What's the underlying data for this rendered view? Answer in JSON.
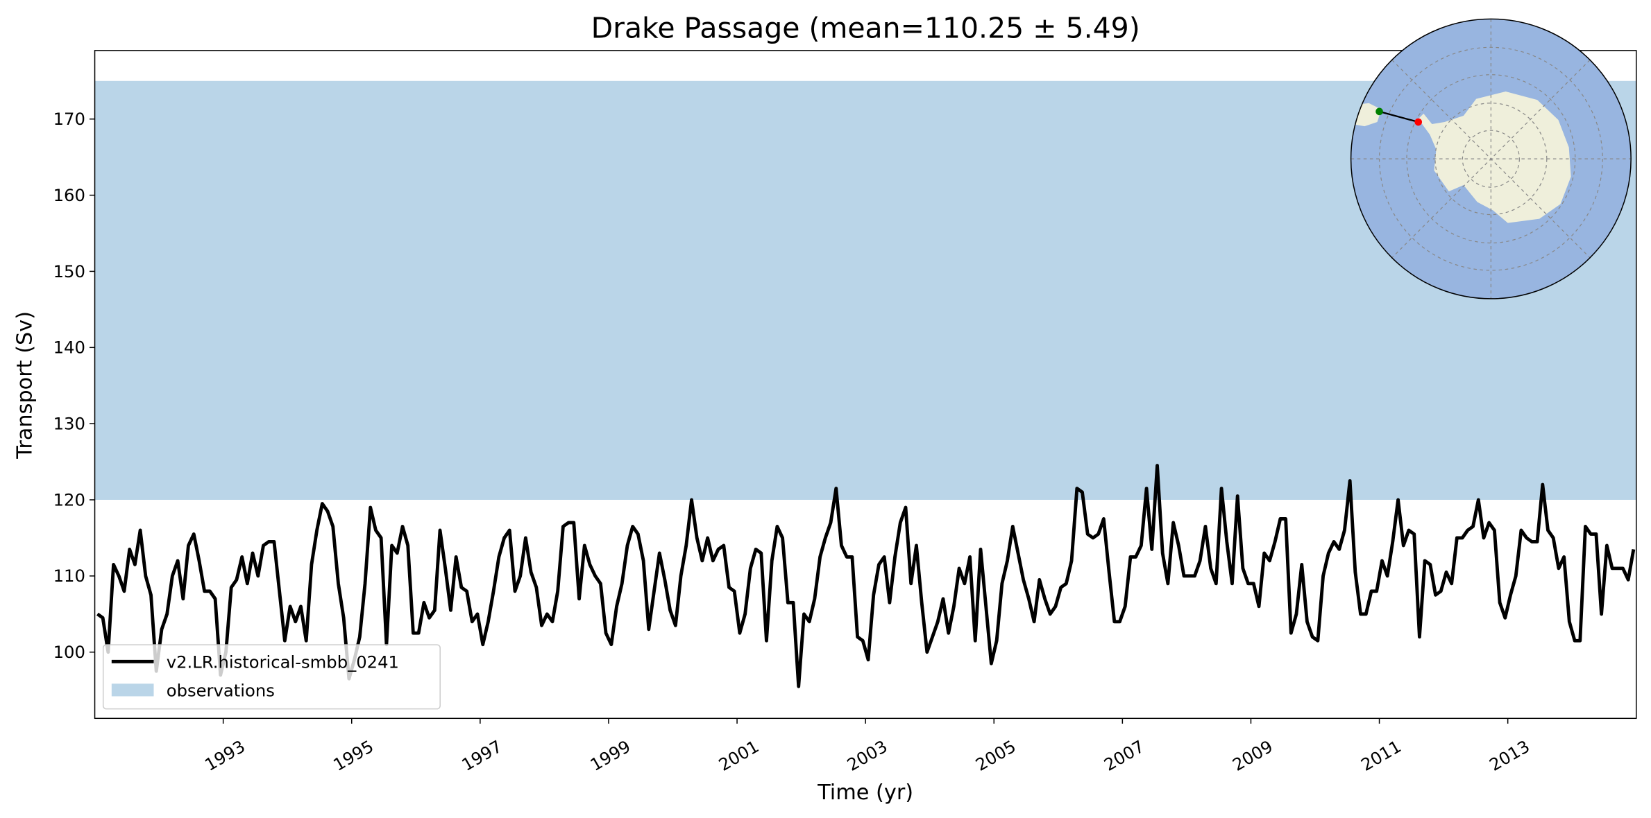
{
  "chart_data": {
    "type": "line",
    "title": "Drake Passage (mean=110.25 ± 5.49)",
    "x_label": "Time (yr)",
    "y_label": "Transport (Sv)",
    "xlim": [
      1991,
      2015
    ],
    "ylim": [
      91.3,
      179
    ],
    "xticks": [
      1993,
      1995,
      1997,
      1999,
      2001,
      2003,
      2005,
      2007,
      2009,
      2011,
      2013
    ],
    "yticks": [
      100,
      110,
      120,
      130,
      140,
      150,
      160,
      170
    ],
    "band": {
      "name": "observations",
      "range": [
        120,
        175
      ],
      "color": "#bad5e8"
    },
    "legend": "lower left",
    "x": [
      1991.042,
      1991.125,
      1991.208,
      1991.292,
      1991.375,
      1991.458,
      1991.542,
      1991.625,
      1991.708,
      1991.792,
      1991.875,
      1991.958,
      1992.042,
      1992.125,
      1992.208,
      1992.292,
      1992.375,
      1992.458,
      1992.542,
      1992.625,
      1992.708,
      1992.792,
      1992.875,
      1992.958,
      1993.042,
      1993.125,
      1993.208,
      1993.292,
      1993.375,
      1993.458,
      1993.542,
      1993.625,
      1993.708,
      1993.792,
      1993.875,
      1993.958,
      1994.042,
      1994.125,
      1994.208,
      1994.292,
      1994.375,
      1994.458,
      1994.542,
      1994.625,
      1994.708,
      1994.792,
      1994.875,
      1994.958,
      1995.042,
      1995.125,
      1995.208,
      1995.292,
      1995.375,
      1995.458,
      1995.542,
      1995.625,
      1995.708,
      1995.792,
      1995.875,
      1995.958,
      1996.042,
      1996.125,
      1996.208,
      1996.292,
      1996.375,
      1996.458,
      1996.542,
      1996.625,
      1996.708,
      1996.792,
      1996.875,
      1996.958,
      1997.042,
      1997.125,
      1997.208,
      1997.292,
      1997.375,
      1997.458,
      1997.542,
      1997.625,
      1997.708,
      1997.792,
      1997.875,
      1997.958,
      1998.042,
      1998.125,
      1998.208,
      1998.292,
      1998.375,
      1998.458,
      1998.542,
      1998.625,
      1998.708,
      1998.792,
      1998.875,
      1998.958,
      1999.042,
      1999.125,
      1999.208,
      1999.292,
      1999.375,
      1999.458,
      1999.542,
      1999.625,
      1999.708,
      1999.792,
      1999.875,
      1999.958,
      2000.042,
      2000.125,
      2000.208,
      2000.292,
      2000.375,
      2000.458,
      2000.542,
      2000.625,
      2000.708,
      2000.792,
      2000.875,
      2000.958,
      2001.042,
      2001.125,
      2001.208,
      2001.292,
      2001.375,
      2001.458,
      2001.542,
      2001.625,
      2001.708,
      2001.792,
      2001.875,
      2001.958,
      2002.042,
      2002.125,
      2002.208,
      2002.292,
      2002.375,
      2002.458,
      2002.542,
      2002.625,
      2002.708,
      2002.792,
      2002.875,
      2002.958,
      2003.042,
      2003.125,
      2003.208,
      2003.292,
      2003.375,
      2003.458,
      2003.542,
      2003.625,
      2003.708,
      2003.792,
      2003.875,
      2003.958,
      2004.042,
      2004.125,
      2004.208,
      2004.292,
      2004.375,
      2004.458,
      2004.542,
      2004.625,
      2004.708,
      2004.792,
      2004.875,
      2004.958,
      2005.042,
      2005.125,
      2005.208,
      2005.292,
      2005.375,
      2005.458,
      2005.542,
      2005.625,
      2005.708,
      2005.792,
      2005.875,
      2005.958,
      2006.042,
      2006.125,
      2006.208,
      2006.292,
      2006.375,
      2006.458,
      2006.542,
      2006.625,
      2006.708,
      2006.792,
      2006.875,
      2006.958,
      2007.042,
      2007.125,
      2007.208,
      2007.292,
      2007.375,
      2007.458,
      2007.542,
      2007.625,
      2007.708,
      2007.792,
      2007.875,
      2007.958,
      2008.042,
      2008.125,
      2008.208,
      2008.292,
      2008.375,
      2008.458,
      2008.542,
      2008.625,
      2008.708,
      2008.792,
      2008.875,
      2008.958,
      2009.042,
      2009.125,
      2009.208,
      2009.292,
      2009.375,
      2009.458,
      2009.542,
      2009.625,
      2009.708,
      2009.792,
      2009.875,
      2009.958,
      2010.042,
      2010.125,
      2010.208,
      2010.292,
      2010.375,
      2010.458,
      2010.542,
      2010.625,
      2010.708,
      2010.792,
      2010.875,
      2010.958,
      2011.042,
      2011.125,
      2011.208,
      2011.292,
      2011.375,
      2011.458,
      2011.542,
      2011.625,
      2011.708,
      2011.792,
      2011.875,
      2011.958,
      2012.042,
      2012.125,
      2012.208,
      2012.292,
      2012.375,
      2012.458,
      2012.542,
      2012.625,
      2012.708,
      2012.792,
      2012.875,
      2012.958,
      2013.042,
      2013.125,
      2013.208,
      2013.292,
      2013.375,
      2013.458,
      2013.542,
      2013.625,
      2013.708,
      2013.792,
      2013.875,
      2013.958,
      2014.042,
      2014.125,
      2014.208,
      2014.292,
      2014.375,
      2014.458,
      2014.542,
      2014.625,
      2014.708,
      2014.792,
      2014.875,
      2014.958
    ],
    "series": [
      {
        "name": "v2.LR.historical-smbb_0241",
        "color": "#000000",
        "values": [
          105,
          104.5,
          100,
          111.5,
          110,
          108,
          113.5,
          111.5,
          116,
          110,
          107.5,
          97.5,
          103,
          105,
          110,
          112,
          107,
          114,
          115.5,
          112,
          108,
          108,
          107,
          97,
          100,
          108.5,
          109.5,
          112.5,
          109,
          113,
          110,
          114,
          114.5,
          114.5,
          108,
          101.5,
          106,
          104,
          106,
          101.5,
          111.5,
          116,
          119.5,
          118.5,
          116.5,
          109,
          104.5,
          96.5,
          99,
          102,
          109,
          119,
          116,
          115,
          101,
          114,
          113,
          116.5,
          114,
          102.5,
          102.5,
          106.5,
          104.5,
          105.5,
          116,
          111,
          105.5,
          112.5,
          108.5,
          108,
          104,
          105,
          101,
          104,
          108,
          112.5,
          115,
          116,
          108,
          110,
          115,
          110.5,
          108.5,
          103.5,
          105,
          104,
          108,
          116.5,
          117,
          117,
          107,
          114,
          111.5,
          110,
          109,
          102.5,
          101,
          106,
          109,
          114,
          116.5,
          115.5,
          112,
          103,
          108,
          113,
          109.5,
          105.5,
          103.5,
          110,
          114,
          120,
          115,
          112,
          115,
          112,
          113.5,
          114,
          108.5,
          108,
          102.5,
          105,
          111,
          113.5,
          113,
          101.5,
          112,
          116.5,
          115,
          106.5,
          106.5,
          95.5,
          105,
          104,
          107,
          112.5,
          115,
          117,
          121.5,
          114,
          112.5,
          112.5,
          102,
          101.5,
          99,
          107.5,
          111.5,
          112.5,
          106.5,
          112.5,
          117,
          119,
          109,
          114,
          106.5,
          100,
          102,
          104,
          107,
          102.5,
          106,
          111,
          109,
          112.5,
          101.5,
          113.5,
          106,
          98.5,
          101.5,
          109,
          112,
          116.5,
          113,
          109.5,
          107,
          104,
          109.5,
          107,
          105,
          106,
          108.5,
          109,
          112,
          121.5,
          121,
          115.5,
          115,
          115.5,
          117.5,
          110.5,
          104,
          104,
          106,
          112.5,
          112.5,
          114,
          121.5,
          113.5,
          124.5,
          113,
          109,
          117,
          114,
          110,
          110,
          110,
          112,
          116.5,
          111,
          109,
          121.5,
          114.5,
          109,
          120.5,
          111,
          109,
          109,
          106,
          113,
          112,
          114.5,
          117.5,
          117.5,
          102.5,
          105,
          111.5,
          104,
          102,
          101.5,
          110,
          113,
          114.5,
          113.5,
          116,
          122.5,
          110.5,
          105,
          105,
          108,
          108,
          112,
          110,
          114.5,
          120,
          114,
          116,
          115.5,
          102,
          112,
          111.5,
          107.5,
          108,
          110.5,
          109,
          115,
          115,
          116,
          116.5,
          120,
          115,
          117,
          116,
          106.5,
          104.5,
          107.5,
          110,
          116,
          115,
          114.5,
          114.5,
          122,
          116,
          115,
          111,
          112.5,
          104,
          101.5,
          101.5,
          116.5,
          115.5,
          115.5,
          105,
          114,
          111,
          111,
          111,
          109.5,
          113.5
        ]
      }
    ]
  }
}
